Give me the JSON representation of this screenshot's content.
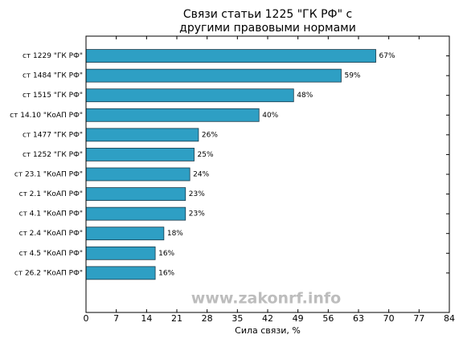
{
  "chart_data": {
    "type": "barh",
    "title": [
      "Связи статьи 1225 \"ГК РФ\" с",
      "другими правовыми нормами"
    ],
    "xlabel": "Сила связи, %",
    "watermark": "www.zakonrf.info",
    "categories": [
      "ст 1229 \"ГК РФ\"",
      "ст 1484 \"ГК РФ\"",
      "ст 1515 \"ГК РФ\"",
      "ст 14.10 \"КоАП РФ\"",
      "ст 1477 \"ГК РФ\"",
      "ст 1252 \"ГК РФ\"",
      "ст 23.1 \"КоАП РФ\"",
      "ст 2.1 \"КоАП РФ\"",
      "ст 4.1 \"КоАП РФ\"",
      "ст 2.4 \"КоАП РФ\"",
      "ст 4.5 \"КоАП РФ\"",
      "ст 26.2 \"КоАП РФ\""
    ],
    "values": [
      67,
      59,
      48,
      40,
      26,
      25,
      24,
      23,
      23,
      18,
      16,
      16
    ],
    "value_labels": [
      "67%",
      "59%",
      "48%",
      "40%",
      "26%",
      "25%",
      "24%",
      "23%",
      "23%",
      "18%",
      "16%",
      "16%"
    ],
    "color": "#2e9fc4",
    "xlim": [
      0,
      84
    ],
    "xticks": [
      0,
      7,
      14,
      21,
      28,
      35,
      42,
      49,
      56,
      63,
      70,
      77,
      84
    ]
  }
}
